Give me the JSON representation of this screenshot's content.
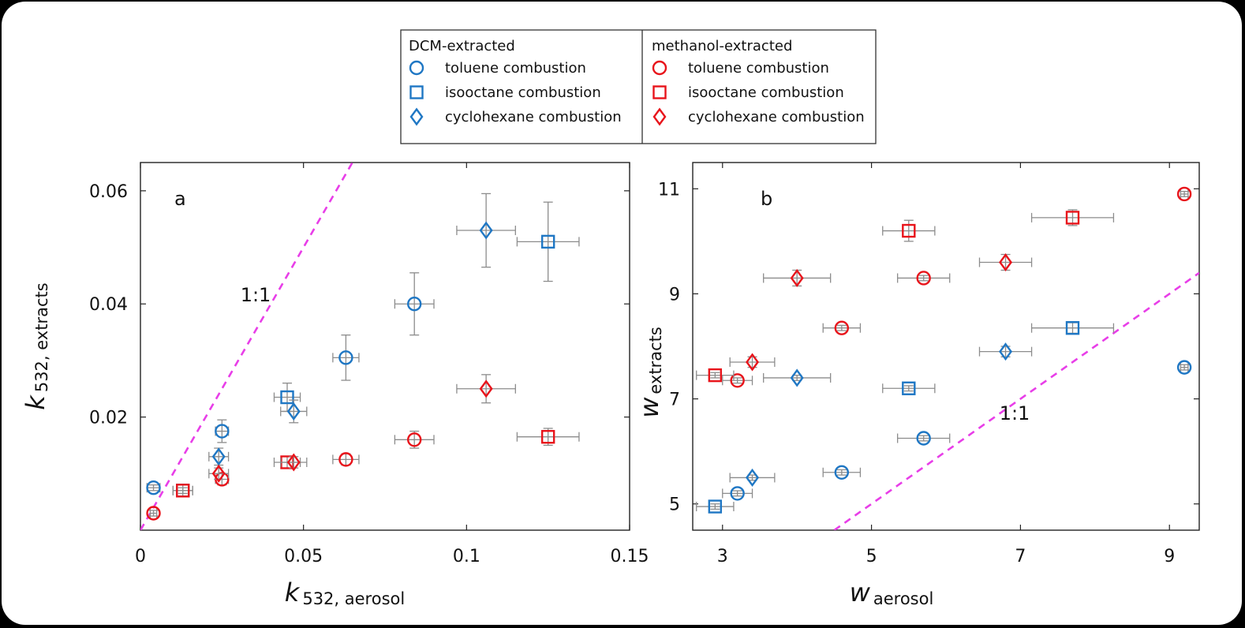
{
  "legend": {
    "groups": [
      {
        "title": "DCM-extracted",
        "color": "#1f77c4",
        "entries": [
          {
            "marker": "circle",
            "label": "toluene combustion"
          },
          {
            "marker": "square",
            "label": "isooctane combustion"
          },
          {
            "marker": "diamond",
            "label": "cyclohexane combustion"
          }
        ]
      },
      {
        "title": "methanol-extracted",
        "color": "#e8141b",
        "entries": [
          {
            "marker": "circle",
            "label": "toluene combustion"
          },
          {
            "marker": "square",
            "label": "isooctane combustion"
          },
          {
            "marker": "diamond",
            "label": "cyclohexane combustion"
          }
        ]
      }
    ]
  },
  "chart_data": [
    {
      "type": "scatter",
      "panel": "a",
      "xlabel_main": "k",
      "xlabel_sub": "532, aerosol",
      "ylabel_main": "k",
      "ylabel_sub": "532, extracts",
      "xlim": [
        0,
        0.15
      ],
      "ylim": [
        0,
        0.065
      ],
      "xticks": [
        0,
        0.05,
        0.1,
        0.15
      ],
      "xtick_labels": [
        "0",
        "0.05",
        "0.1",
        "0.15"
      ],
      "yticks": [
        0.02,
        0.04,
        0.06
      ],
      "ytick_labels": [
        "0.02",
        "0.04",
        "0.06"
      ],
      "grid": false,
      "ratio_line": {
        "label": "1:1",
        "x": [
          0,
          0.065
        ],
        "y": [
          0,
          0.065
        ]
      },
      "series": [
        {
          "group": "DCM-extracted",
          "fuel": "toluene combustion",
          "marker": "circle",
          "color": "#1f77c4",
          "points": [
            [
              0.004,
              0.0075,
              0.002,
              0.0005
            ],
            [
              0.025,
              0.0175,
              0.002,
              0.002
            ],
            [
              0.063,
              0.0305,
              0.004,
              0.004
            ],
            [
              0.084,
              0.04,
              0.006,
              0.0055
            ]
          ]
        },
        {
          "group": "DCM-extracted",
          "fuel": "isooctane combustion",
          "marker": "square",
          "color": "#1f77c4",
          "points": [
            [
              0.013,
              0.007,
              0.003,
              0.001
            ],
            [
              0.045,
              0.0235,
              0.004,
              0.0025
            ],
            [
              0.125,
              0.051,
              0.0095,
              0.007
            ]
          ]
        },
        {
          "group": "DCM-extracted",
          "fuel": "cyclohexane combustion",
          "marker": "diamond",
          "color": "#1f77c4",
          "points": [
            [
              0.024,
              0.013,
              0.003,
              0.0015
            ],
            [
              0.047,
              0.021,
              0.004,
              0.002
            ],
            [
              0.106,
              0.053,
              0.009,
              0.0065
            ]
          ]
        },
        {
          "group": "methanol-extracted",
          "fuel": "toluene combustion",
          "marker": "circle",
          "color": "#e8141b",
          "points": [
            [
              0.004,
              0.003,
              0.001,
              0.0005
            ],
            [
              0.025,
              0.009,
              0.002,
              0.001
            ],
            [
              0.063,
              0.0125,
              0.004,
              0.001
            ],
            [
              0.084,
              0.016,
              0.006,
              0.0015
            ]
          ]
        },
        {
          "group": "methanol-extracted",
          "fuel": "isooctane combustion",
          "marker": "square",
          "color": "#e8141b",
          "points": [
            [
              0.013,
              0.007,
              0.003,
              0.0005
            ],
            [
              0.045,
              0.012,
              0.004,
              0.001
            ],
            [
              0.125,
              0.0165,
              0.0095,
              0.0015
            ]
          ]
        },
        {
          "group": "methanol-extracted",
          "fuel": "cyclohexane combustion",
          "marker": "diamond",
          "color": "#e8141b",
          "points": [
            [
              0.024,
              0.01,
              0.003,
              0.001
            ],
            [
              0.047,
              0.012,
              0.004,
              0.001
            ],
            [
              0.106,
              0.025,
              0.009,
              0.0025
            ]
          ]
        }
      ]
    },
    {
      "type": "scatter",
      "panel": "b",
      "xlabel_main": "w",
      "xlabel_sub": "aerosol",
      "ylabel_main": "w",
      "ylabel_sub": "extracts",
      "xlim": [
        2.6,
        9.4
      ],
      "ylim": [
        4.5,
        11.5
      ],
      "xticks": [
        3,
        5,
        7,
        9
      ],
      "xtick_labels": [
        "3",
        "5",
        "7",
        "9"
      ],
      "yticks": [
        5,
        7,
        9,
        11
      ],
      "ytick_labels": [
        "5",
        "7",
        "9",
        "11"
      ],
      "grid": false,
      "ratio_line": {
        "label": "1:1",
        "x": [
          4.5,
          9.4
        ],
        "y": [
          4.5,
          9.4
        ]
      },
      "series": [
        {
          "group": "DCM-extracted",
          "fuel": "toluene combustion",
          "marker": "circle",
          "color": "#1f77c4",
          "points": [
            [
              3.2,
              5.2,
              0.2,
              0.05
            ],
            [
              4.6,
              5.6,
              0.25,
              0.05
            ],
            [
              5.7,
              6.25,
              0.35,
              0.05
            ],
            [
              9.2,
              7.6,
              0.05,
              0.05
            ]
          ]
        },
        {
          "group": "DCM-extracted",
          "fuel": "isooctane combustion",
          "marker": "square",
          "color": "#1f77c4",
          "points": [
            [
              2.9,
              4.95,
              0.25,
              0.05
            ],
            [
              5.5,
              7.2,
              0.35,
              0.05
            ],
            [
              7.7,
              8.35,
              0.55,
              0.1
            ]
          ]
        },
        {
          "group": "DCM-extracted",
          "fuel": "cyclohexane combustion",
          "marker": "diamond",
          "color": "#1f77c4",
          "points": [
            [
              3.4,
              5.5,
              0.3,
              0.05
            ],
            [
              4.0,
              7.4,
              0.45,
              0.05
            ],
            [
              6.8,
              7.9,
              0.35,
              0.1
            ]
          ]
        },
        {
          "group": "methanol-extracted",
          "fuel": "toluene combustion",
          "marker": "circle",
          "color": "#e8141b",
          "points": [
            [
              3.2,
              7.35,
              0.2,
              0.05
            ],
            [
              4.6,
              8.35,
              0.25,
              0.05
            ],
            [
              5.7,
              9.3,
              0.35,
              0.05
            ],
            [
              9.2,
              10.9,
              0.05,
              0.05
            ]
          ]
        },
        {
          "group": "methanol-extracted",
          "fuel": "isooctane combustion",
          "marker": "square",
          "color": "#e8141b",
          "points": [
            [
              2.9,
              7.45,
              0.25,
              0.05
            ],
            [
              5.5,
              10.2,
              0.35,
              0.2
            ],
            [
              7.7,
              10.45,
              0.55,
              0.15
            ]
          ]
        },
        {
          "group": "methanol-extracted",
          "fuel": "cyclohexane combustion",
          "marker": "diamond",
          "color": "#e8141b",
          "points": [
            [
              3.4,
              7.7,
              0.3,
              0.1
            ],
            [
              4.0,
              9.3,
              0.45,
              0.15
            ],
            [
              6.8,
              9.6,
              0.35,
              0.15
            ]
          ]
        }
      ]
    }
  ]
}
